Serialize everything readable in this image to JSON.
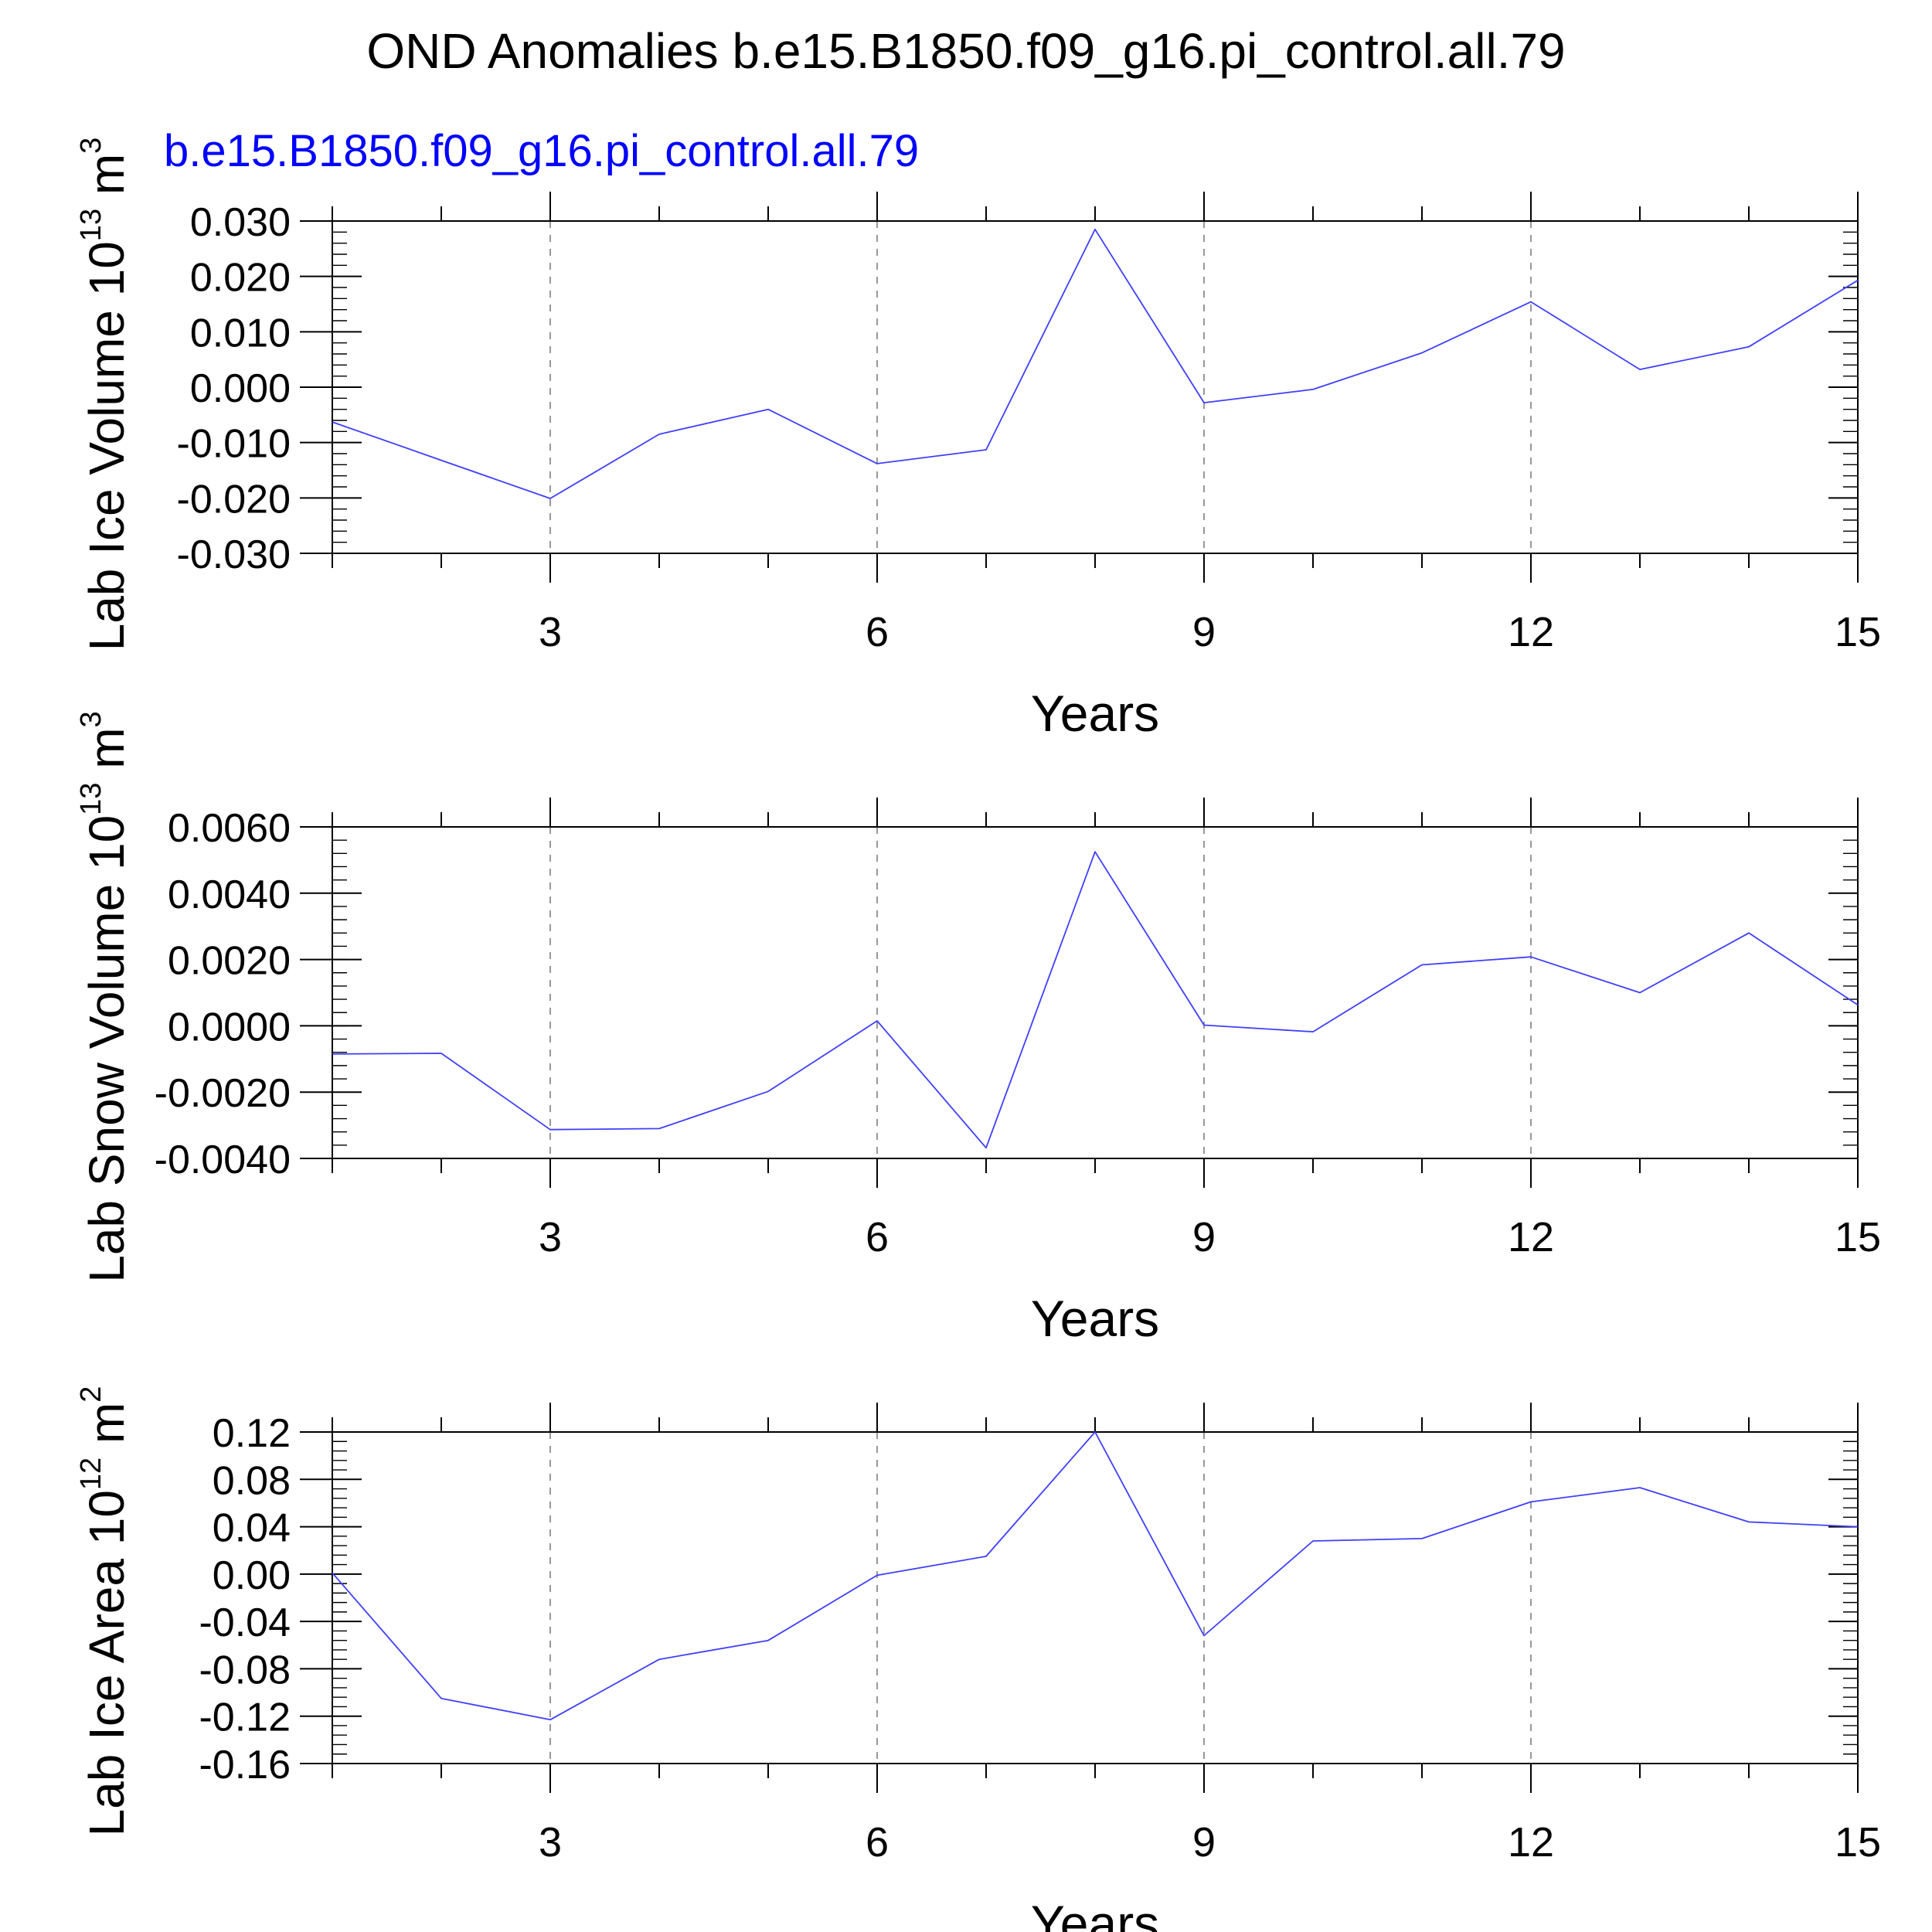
{
  "figure": {
    "title": "OND Anomalies b.e15.B1850.f09_g16.pi_control.all.79",
    "subtitle": "b.e15.B1850.f09_g16.pi_control.all.79",
    "subtitle_color": "#0000ff",
    "line_color": "#3f3fff",
    "axis_color": "#000000",
    "grid_color": "#7f7f7f"
  },
  "chart_data": [
    {
      "type": "line",
      "name": "lab-ice-volume",
      "ylabel": "Lab Ice Volume 10",
      "ylabel_exp": "13",
      "ylabel_unit": " m",
      "ylabel_unit_exp": "3",
      "xlabel": "Years",
      "xlim": [
        1,
        15
      ],
      "ylim": [
        -0.03,
        0.03
      ],
      "yticks": [
        -0.03,
        -0.02,
        -0.01,
        0.0,
        0.01,
        0.02,
        0.03
      ],
      "ytick_labels": [
        "-0.030",
        "-0.020",
        "-0.010",
        "0.000",
        "0.010",
        "0.020",
        "0.030"
      ],
      "yminor_step": 0.002,
      "xticks": [
        3,
        6,
        9,
        12,
        15
      ],
      "xtick_labels": [
        "3",
        "6",
        "9",
        "12",
        "15"
      ],
      "x": [
        1,
        2,
        3,
        4,
        5,
        6,
        7,
        8,
        9,
        10,
        11,
        12,
        13,
        14,
        15
      ],
      "values": [
        -0.0063,
        -0.0132,
        -0.0201,
        -0.0085,
        -0.004,
        -0.0138,
        -0.0113,
        0.0285,
        -0.0028,
        -0.0004,
        0.0062,
        0.0154,
        0.0032,
        0.0073,
        0.0193
      ]
    },
    {
      "type": "line",
      "name": "lab-snow-volume",
      "ylabel": "Lab Snow Volume 10",
      "ylabel_exp": "13",
      "ylabel_unit": " m",
      "ylabel_unit_exp": "3",
      "xlabel": "Years",
      "xlim": [
        1,
        15
      ],
      "ylim": [
        -0.004,
        0.006
      ],
      "yticks": [
        -0.004,
        -0.002,
        0.0,
        0.002,
        0.004,
        0.006
      ],
      "ytick_labels": [
        "-0.0040",
        "-0.0020",
        "0.0000",
        "0.0020",
        "0.0040",
        "0.0060"
      ],
      "yminor_step": 0.0004,
      "xticks": [
        3,
        6,
        9,
        12,
        15
      ],
      "xtick_labels": [
        "3",
        "6",
        "9",
        "12",
        "15"
      ],
      "x": [
        1,
        2,
        3,
        4,
        5,
        6,
        7,
        8,
        9,
        10,
        11,
        12,
        13,
        14,
        15
      ],
      "values": [
        -0.00085,
        -0.00083,
        -0.00313,
        -0.0031,
        -0.00198,
        0.00015,
        -0.00368,
        0.00525,
        2e-05,
        -0.00018,
        0.00184,
        0.00208,
        0.001,
        0.0028,
        0.00063
      ]
    },
    {
      "type": "line",
      "name": "lab-ice-area",
      "ylabel": "Lab Ice Area 10",
      "ylabel_exp": "12",
      "ylabel_unit": " m",
      "ylabel_unit_exp": "2",
      "xlabel": "Years",
      "xlim": [
        1,
        15
      ],
      "ylim": [
        -0.16,
        0.12
      ],
      "yticks": [
        -0.16,
        -0.12,
        -0.08,
        -0.04,
        0.0,
        0.04,
        0.08,
        0.12
      ],
      "ytick_labels": [
        "-0.16",
        "-0.12",
        "-0.08",
        "-0.04",
        "0.00",
        "0.04",
        "0.08",
        "0.12"
      ],
      "yminor_step": 0.008,
      "xticks": [
        3,
        6,
        9,
        12,
        15
      ],
      "xtick_labels": [
        "3",
        "6",
        "9",
        "12",
        "15"
      ],
      "x": [
        1,
        2,
        3,
        4,
        5,
        6,
        7,
        8,
        9,
        10,
        11,
        12,
        13,
        14,
        15
      ],
      "values": [
        0.001,
        -0.105,
        -0.123,
        -0.072,
        -0.056,
        -0.001,
        0.015,
        0.12,
        -0.052,
        0.028,
        0.03,
        0.061,
        0.073,
        0.044,
        0.04
      ]
    }
  ]
}
